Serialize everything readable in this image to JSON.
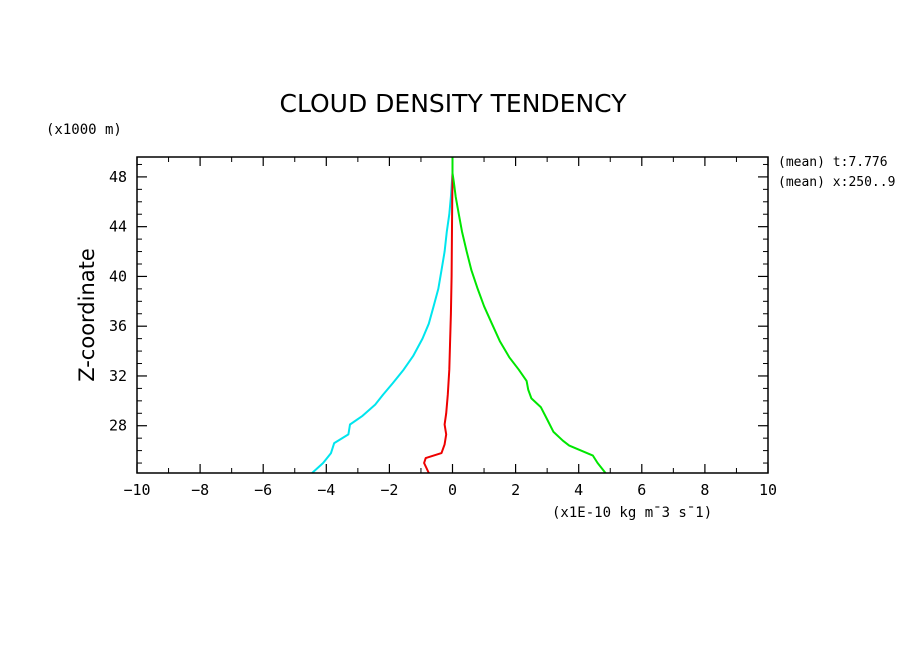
{
  "chart_data": {
    "type": "line",
    "title": "CLOUD DENSITY TENDENCY",
    "xlabel": "(x1E-10 kg m¯3 s¯1)",
    "ylabel": "Z-coordinate",
    "y_units": "(x1000 m)",
    "xlim": [
      -10,
      10
    ],
    "ylim": [
      24.2,
      49.6
    ],
    "x_ticks": [
      -10,
      -8,
      -6,
      -4,
      -2,
      0,
      2,
      4,
      6,
      8,
      10
    ],
    "y_ticks": [
      28,
      32,
      36,
      40,
      44,
      48
    ],
    "info_lines": [
      "(mean) t:7.776",
      "(mean) x:250..9"
    ],
    "grid": false,
    "legend": "none",
    "series": [
      {
        "color": "#00e5ee",
        "points": [
          [
            -4.45,
            24.2
          ],
          [
            -4.1,
            25.0
          ],
          [
            -3.85,
            25.8
          ],
          [
            -3.75,
            26.6
          ],
          [
            -3.3,
            27.3
          ],
          [
            -3.25,
            28.1
          ],
          [
            -2.85,
            28.8
          ],
          [
            -2.45,
            29.7
          ],
          [
            -2.2,
            30.5
          ],
          [
            -1.9,
            31.4
          ],
          [
            -1.55,
            32.5
          ],
          [
            -1.25,
            33.6
          ],
          [
            -0.95,
            35.0
          ],
          [
            -0.75,
            36.2
          ],
          [
            -0.6,
            37.6
          ],
          [
            -0.45,
            39.0
          ],
          [
            -0.35,
            40.5
          ],
          [
            -0.25,
            42.0
          ],
          [
            -0.18,
            43.6
          ],
          [
            -0.1,
            45.0
          ],
          [
            -0.05,
            46.4
          ],
          [
            -0.02,
            47.6
          ],
          [
            0.0,
            48.3
          ],
          [
            0.0,
            49.6
          ]
        ]
      },
      {
        "color": "#ee0000",
        "points": [
          [
            -0.75,
            24.2
          ],
          [
            -0.9,
            25.0
          ],
          [
            -0.85,
            25.4
          ],
          [
            -0.35,
            25.8
          ],
          [
            -0.25,
            26.5
          ],
          [
            -0.2,
            27.3
          ],
          [
            -0.25,
            28.1
          ],
          [
            -0.2,
            29.0
          ],
          [
            -0.15,
            30.5
          ],
          [
            -0.1,
            32.5
          ],
          [
            -0.08,
            34.5
          ],
          [
            -0.05,
            37.0
          ],
          [
            -0.03,
            40.0
          ],
          [
            -0.02,
            43.0
          ],
          [
            -0.01,
            46.0
          ],
          [
            0.0,
            47.8
          ],
          [
            0.0,
            48.3
          ]
        ]
      },
      {
        "color": "#00e600",
        "points": [
          [
            4.85,
            24.2
          ],
          [
            4.6,
            25.0
          ],
          [
            4.45,
            25.6
          ],
          [
            3.7,
            26.4
          ],
          [
            3.5,
            26.8
          ],
          [
            3.2,
            27.5
          ],
          [
            3.0,
            28.5
          ],
          [
            2.8,
            29.5
          ],
          [
            2.5,
            30.2
          ],
          [
            2.4,
            30.9
          ],
          [
            2.35,
            31.6
          ],
          [
            2.1,
            32.5
          ],
          [
            1.8,
            33.5
          ],
          [
            1.5,
            34.8
          ],
          [
            1.25,
            36.2
          ],
          [
            1.0,
            37.6
          ],
          [
            0.8,
            39.0
          ],
          [
            0.6,
            40.5
          ],
          [
            0.45,
            42.0
          ],
          [
            0.3,
            43.6
          ],
          [
            0.2,
            45.0
          ],
          [
            0.1,
            46.4
          ],
          [
            0.04,
            47.6
          ],
          [
            0.0,
            48.3
          ],
          [
            0.0,
            49.6
          ]
        ]
      }
    ]
  }
}
